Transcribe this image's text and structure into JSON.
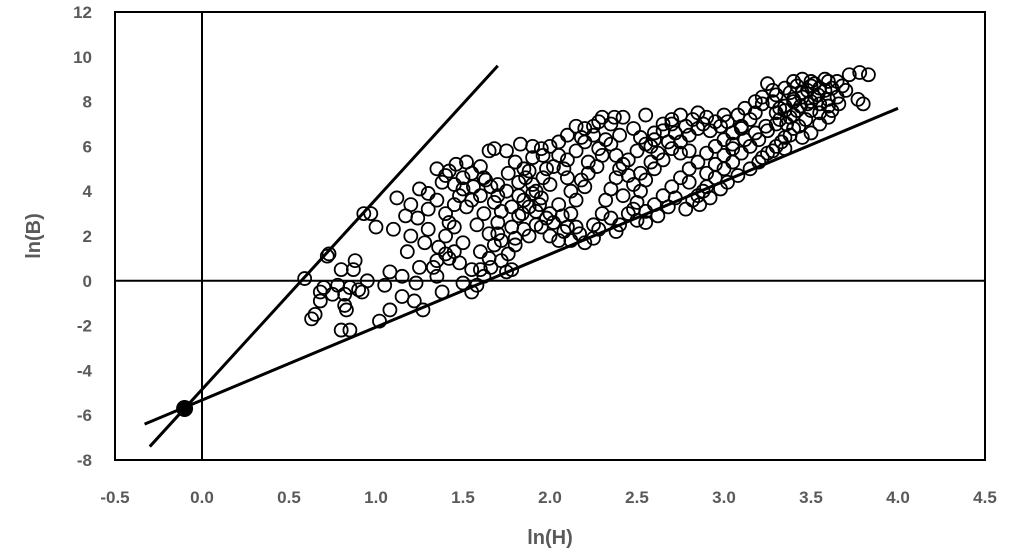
{
  "chart_data": {
    "type": "scatter",
    "title": "",
    "xlabel": "ln(H)",
    "ylabel": "ln(B)",
    "xlim": [
      -0.5,
      4.5
    ],
    "ylim": [
      -8,
      12
    ],
    "x_ticks": [
      "-0.5",
      "0.0",
      "0.5",
      "1.0",
      "1.5",
      "2.0",
      "2.5",
      "3.0",
      "3.5",
      "4.0",
      "4.5"
    ],
    "y_ticks": [
      "-8",
      "-6",
      "-4",
      "-2",
      "0",
      "2",
      "4",
      "6",
      "8",
      "10",
      "12"
    ],
    "grid": false,
    "legend": "none",
    "marker": "open-circle",
    "reference_lines": [
      {
        "x1": -0.3,
        "y1": -7.4,
        "x2": 1.7,
        "y2": 9.6
      },
      {
        "x1": -0.33,
        "y1": -6.4,
        "x2": 4.0,
        "y2": 7.7
      }
    ],
    "highlight_point": {
      "x": -0.1,
      "y": -5.7
    },
    "points": [
      [
        0.59,
        0.1
      ],
      [
        0.72,
        1.1
      ],
      [
        0.73,
        1.2
      ],
      [
        0.63,
        -1.7
      ],
      [
        0.65,
        -1.5
      ],
      [
        0.68,
        -0.9
      ],
      [
        0.68,
        -0.5
      ],
      [
        0.7,
        -0.3
      ],
      [
        0.75,
        -0.6
      ],
      [
        0.78,
        -0.2
      ],
      [
        0.8,
        0.5
      ],
      [
        0.82,
        -0.6
      ],
      [
        0.82,
        -1.1
      ],
      [
        0.8,
        -2.2
      ],
      [
        0.85,
        -2.2
      ],
      [
        0.83,
        -1.3
      ],
      [
        0.85,
        -0.3
      ],
      [
        0.87,
        0.5
      ],
      [
        0.88,
        0.9
      ],
      [
        0.9,
        -0.4
      ],
      [
        0.93,
        3.0
      ],
      [
        0.97,
        3.0
      ],
      [
        1.0,
        2.4
      ],
      [
        1.1,
        2.3
      ],
      [
        1.12,
        3.7
      ],
      [
        1.17,
        2.9
      ],
      [
        1.2,
        3.4
      ],
      [
        1.25,
        4.1
      ],
      [
        1.3,
        3.9
      ],
      [
        1.3,
        2.3
      ],
      [
        1.25,
        0.6
      ],
      [
        1.23,
        -0.1
      ],
      [
        1.15,
        -0.7
      ],
      [
        1.08,
        -1.3
      ],
      [
        1.02,
        -1.8
      ],
      [
        1.22,
        -0.9
      ],
      [
        1.27,
        -1.3
      ],
      [
        1.35,
        0.2
      ],
      [
        1.4,
        1.2
      ],
      [
        1.42,
        2.6
      ],
      [
        1.45,
        3.4
      ],
      [
        1.5,
        4.1
      ],
      [
        1.38,
        4.4
      ],
      [
        1.42,
        4.9
      ],
      [
        1.46,
        5.2
      ],
      [
        1.52,
        5.3
      ],
      [
        1.6,
        5.1
      ],
      [
        1.65,
        5.8
      ],
      [
        1.68,
        5.9
      ],
      [
        1.75,
        5.8
      ],
      [
        1.83,
        6.1
      ],
      [
        1.9,
        6.0
      ],
      [
        1.96,
        5.6
      ],
      [
        1.88,
        4.9
      ],
      [
        1.82,
        4.4
      ],
      [
        1.75,
        4.0
      ],
      [
        1.7,
        4.3
      ],
      [
        1.63,
        4.5
      ],
      [
        1.55,
        4.8
      ],
      [
        1.52,
        3.3
      ],
      [
        1.58,
        2.5
      ],
      [
        1.55,
        0.5
      ],
      [
        1.5,
        -0.1
      ],
      [
        1.48,
        0.8
      ],
      [
        1.45,
        1.3
      ],
      [
        1.38,
        -0.5
      ],
      [
        1.33,
        0.6
      ],
      [
        1.36,
        1.5
      ],
      [
        1.4,
        2.0
      ],
      [
        1.55,
        -0.5
      ],
      [
        1.6,
        0.5
      ],
      [
        1.65,
        1.0
      ],
      [
        1.68,
        1.6
      ],
      [
        1.65,
        2.1
      ],
      [
        1.7,
        2.6
      ],
      [
        1.72,
        0.9
      ],
      [
        1.75,
        0.4
      ],
      [
        1.78,
        2.4
      ],
      [
        1.82,
        2.9
      ],
      [
        1.85,
        2.3
      ],
      [
        1.85,
        3.6
      ],
      [
        1.9,
        4.3
      ],
      [
        1.92,
        3.1
      ],
      [
        1.95,
        3.7
      ],
      [
        1.95,
        2.4
      ],
      [
        2.0,
        2.0
      ],
      [
        2.0,
        3.0
      ],
      [
        2.0,
        4.3
      ],
      [
        2.02,
        5.1
      ],
      [
        2.05,
        5.6
      ],
      [
        2.1,
        5.4
      ],
      [
        2.15,
        5.8
      ],
      [
        2.18,
        6.4
      ],
      [
        2.2,
        6.8
      ],
      [
        2.25,
        6.9
      ],
      [
        2.3,
        7.3
      ],
      [
        2.35,
        7.0
      ],
      [
        2.37,
        7.3
      ],
      [
        2.4,
        6.5
      ],
      [
        2.35,
        6.1
      ],
      [
        2.3,
        5.6
      ],
      [
        2.27,
        5.1
      ],
      [
        2.22,
        4.8
      ],
      [
        2.2,
        4.2
      ],
      [
        2.15,
        3.6
      ],
      [
        2.12,
        3.0
      ],
      [
        2.1,
        2.4
      ],
      [
        2.07,
        2.9
      ],
      [
        2.05,
        3.4
      ],
      [
        2.17,
        2.1
      ],
      [
        2.25,
        2.5
      ],
      [
        2.3,
        3.0
      ],
      [
        2.32,
        3.6
      ],
      [
        2.35,
        4.1
      ],
      [
        2.38,
        4.6
      ],
      [
        2.4,
        5.0
      ],
      [
        2.45,
        5.4
      ],
      [
        2.5,
        5.8
      ],
      [
        2.55,
        6.1
      ],
      [
        2.6,
        6.6
      ],
      [
        2.65,
        7.0
      ],
      [
        2.7,
        7.2
      ],
      [
        2.75,
        7.4
      ],
      [
        2.85,
        7.5
      ],
      [
        2.9,
        7.3
      ],
      [
        2.95,
        7.1
      ],
      [
        3.0,
        7.4
      ],
      [
        2.55,
        7.4
      ],
      [
        2.4,
        2.5
      ],
      [
        2.45,
        3.0
      ],
      [
        2.5,
        3.5
      ],
      [
        2.52,
        4.0
      ],
      [
        2.55,
        4.5
      ],
      [
        2.6,
        5.0
      ],
      [
        2.65,
        5.4
      ],
      [
        2.7,
        5.9
      ],
      [
        2.75,
        6.2
      ],
      [
        2.8,
        6.5
      ],
      [
        2.85,
        6.8
      ],
      [
        2.5,
        2.7
      ],
      [
        2.55,
        3.1
      ],
      [
        2.6,
        3.4
      ],
      [
        2.65,
        3.8
      ],
      [
        2.7,
        4.2
      ],
      [
        2.75,
        4.6
      ],
      [
        2.8,
        5.0
      ],
      [
        2.85,
        5.3
      ],
      [
        2.9,
        5.7
      ],
      [
        2.95,
        6.0
      ],
      [
        3.0,
        6.3
      ],
      [
        3.05,
        6.6
      ],
      [
        3.1,
        6.9
      ],
      [
        2.78,
        3.2
      ],
      [
        2.85,
        3.8
      ],
      [
        2.9,
        4.2
      ],
      [
        2.95,
        4.6
      ],
      [
        3.0,
        5.0
      ],
      [
        3.05,
        5.3
      ],
      [
        3.1,
        5.7
      ],
      [
        3.15,
        6.0
      ],
      [
        3.2,
        6.3
      ],
      [
        3.25,
        6.7
      ],
      [
        3.3,
        7.0
      ],
      [
        3.2,
        5.3
      ],
      [
        3.25,
        5.7
      ],
      [
        3.3,
        6.0
      ],
      [
        3.35,
        6.4
      ],
      [
        3.4,
        6.8
      ],
      [
        3.3,
        7.5
      ],
      [
        3.35,
        7.8
      ],
      [
        3.4,
        8.1
      ],
      [
        3.45,
        8.4
      ],
      [
        3.5,
        8.7
      ],
      [
        3.3,
        8.3
      ],
      [
        3.35,
        8.6
      ],
      [
        3.4,
        8.9
      ],
      [
        3.45,
        9.0
      ],
      [
        3.5,
        8.9
      ],
      [
        3.55,
        8.6
      ],
      [
        3.6,
        8.9
      ],
      [
        3.38,
        7.3
      ],
      [
        3.42,
        7.6
      ],
      [
        3.48,
        7.9
      ],
      [
        3.52,
        8.2
      ],
      [
        3.58,
        8.5
      ],
      [
        3.55,
        7.5
      ],
      [
        3.6,
        7.8
      ],
      [
        3.65,
        8.2
      ],
      [
        3.7,
        8.5
      ],
      [
        3.5,
        6.6
      ],
      [
        3.55,
        7.0
      ],
      [
        3.6,
        7.3
      ],
      [
        3.45,
        6.4
      ],
      [
        3.35,
        5.9
      ],
      [
        3.72,
        9.2
      ],
      [
        3.78,
        9.3
      ],
      [
        3.83,
        9.2
      ],
      [
        3.8,
        7.9
      ],
      [
        3.77,
        8.1
      ],
      [
        3.65,
        8.9
      ],
      [
        3.68,
        8.7
      ],
      [
        3.25,
        8.8
      ],
      [
        3.28,
        8.5
      ],
      [
        3.22,
        7.9
      ],
      [
        3.18,
        7.5
      ],
      [
        3.15,
        7.2
      ],
      [
        3.1,
        6.8
      ],
      [
        3.05,
        6.1
      ],
      [
        3.0,
        5.6
      ],
      [
        2.95,
        5.2
      ],
      [
        2.9,
        4.8
      ],
      [
        2.88,
        4.0
      ],
      [
        2.82,
        3.6
      ],
      [
        2.8,
        4.4
      ],
      [
        2.72,
        3.7
      ],
      [
        2.68,
        3.3
      ],
      [
        2.62,
        2.9
      ],
      [
        2.55,
        2.6
      ],
      [
        2.48,
        3.2
      ],
      [
        2.42,
        3.8
      ],
      [
        2.38,
        2.2
      ],
      [
        2.35,
        2.8
      ],
      [
        2.28,
        2.3
      ],
      [
        2.25,
        1.9
      ],
      [
        2.2,
        1.7
      ],
      [
        2.15,
        2.4
      ],
      [
        2.12,
        1.8
      ],
      [
        2.08,
        2.2
      ],
      [
        2.05,
        1.8
      ],
      [
        2.02,
        2.6
      ],
      [
        1.98,
        2.8
      ],
      [
        1.92,
        2.5
      ],
      [
        1.88,
        2.0
      ],
      [
        1.8,
        1.6
      ],
      [
        1.76,
        1.2
      ],
      [
        1.72,
        1.8
      ],
      [
        1.7,
        2.1
      ],
      [
        1.66,
        0.6
      ],
      [
        1.62,
        0.2
      ],
      [
        1.58,
        -0.2
      ],
      [
        1.6,
        1.3
      ],
      [
        1.78,
        0.5
      ],
      [
        1.8,
        1.9
      ],
      [
        1.84,
        3.0
      ],
      [
        1.88,
        3.3
      ],
      [
        1.9,
        3.9
      ],
      [
        1.96,
        4.6
      ],
      [
        1.98,
        5.0
      ],
      [
        2.08,
        5.0
      ],
      [
        2.1,
        4.6
      ],
      [
        2.12,
        4.0
      ],
      [
        2.18,
        4.5
      ],
      [
        2.22,
        5.3
      ],
      [
        2.28,
        5.9
      ],
      [
        2.32,
        6.3
      ],
      [
        2.38,
        5.6
      ],
      [
        2.42,
        5.2
      ],
      [
        2.45,
        4.7
      ],
      [
        2.48,
        4.3
      ],
      [
        2.52,
        4.8
      ],
      [
        2.58,
        5.3
      ],
      [
        2.62,
        5.7
      ],
      [
        2.68,
        6.2
      ],
      [
        2.72,
        6.6
      ],
      [
        2.78,
        6.9
      ],
      [
        2.82,
        7.2
      ],
      [
        2.88,
        7.0
      ],
      [
        2.92,
        6.7
      ],
      [
        2.98,
        6.9
      ],
      [
        3.02,
        7.1
      ],
      [
        3.08,
        7.4
      ],
      [
        3.12,
        7.7
      ],
      [
        3.18,
        8.0
      ],
      [
        3.22,
        8.2
      ],
      [
        3.28,
        8.0
      ],
      [
        3.32,
        7.7
      ],
      [
        3.38,
        8.4
      ],
      [
        3.42,
        8.7
      ],
      [
        3.48,
        8.5
      ],
      [
        3.52,
        8.8
      ],
      [
        3.58,
        9.0
      ],
      [
        3.62,
        8.6
      ],
      [
        3.47,
        7.2
      ],
      [
        3.43,
        6.9
      ],
      [
        3.38,
        6.5
      ],
      [
        3.33,
        6.2
      ],
      [
        3.28,
        5.8
      ],
      [
        3.22,
        5.5
      ],
      [
        3.15,
        5.0
      ],
      [
        3.08,
        4.7
      ],
      [
        3.02,
        4.4
      ],
      [
        2.98,
        4.1
      ],
      [
        2.92,
        3.7
      ],
      [
        2.86,
        3.4
      ],
      [
        3.05,
        5.9
      ],
      [
        3.12,
        6.3
      ],
      [
        3.18,
        6.6
      ],
      [
        3.24,
        6.9
      ],
      [
        3.32,
        7.2
      ],
      [
        3.36,
        7.0
      ],
      [
        3.4,
        7.4
      ],
      [
        3.44,
        7.8
      ],
      [
        3.5,
        8.0
      ],
      [
        3.54,
        8.3
      ],
      [
        1.3,
        3.2
      ],
      [
        1.35,
        3.6
      ],
      [
        1.4,
        3.0
      ],
      [
        1.45,
        2.4
      ],
      [
        1.5,
        1.7
      ],
      [
        1.42,
        1.0
      ],
      [
        1.35,
        0.9
      ],
      [
        1.28,
        1.7
      ],
      [
        1.24,
        2.8
      ],
      [
        1.2,
        2.0
      ],
      [
        1.18,
        1.3
      ],
      [
        1.15,
        0.2
      ],
      [
        1.08,
        0.4
      ],
      [
        1.05,
        -0.2
      ],
      [
        0.95,
        0.0
      ],
      [
        0.92,
        -0.5
      ],
      [
        1.62,
        3.0
      ],
      [
        1.68,
        3.5
      ],
      [
        1.72,
        3.1
      ],
      [
        1.76,
        4.8
      ],
      [
        1.8,
        5.3
      ],
      [
        1.85,
        5.0
      ],
      [
        1.9,
        5.5
      ],
      [
        1.95,
        5.9
      ],
      [
        2.0,
        6.0
      ],
      [
        2.05,
        6.2
      ],
      [
        2.1,
        6.5
      ],
      [
        2.15,
        6.9
      ],
      [
        2.2,
        6.2
      ],
      [
        2.25,
        6.5
      ],
      [
        2.28,
        7.1
      ],
      [
        2.42,
        7.3
      ],
      [
        2.48,
        6.8
      ],
      [
        2.52,
        6.4
      ],
      [
        2.58,
        6.0
      ],
      [
        2.6,
        6.3
      ],
      [
        2.65,
        6.7
      ],
      [
        2.7,
        7.0
      ],
      [
        2.75,
        5.7
      ],
      [
        2.8,
        5.8
      ],
      [
        1.5,
        4.6
      ],
      [
        1.56,
        4.2
      ],
      [
        1.6,
        3.8
      ],
      [
        1.55,
        3.6
      ],
      [
        1.48,
        3.8
      ],
      [
        1.45,
        4.3
      ],
      [
        1.4,
        4.7
      ],
      [
        1.35,
        5.0
      ],
      [
        1.62,
        4.6
      ],
      [
        1.66,
        4.2
      ],
      [
        1.7,
        3.8
      ],
      [
        1.78,
        3.3
      ],
      [
        1.82,
        3.8
      ],
      [
        1.86,
        4.6
      ],
      [
        1.92,
        4.0
      ],
      [
        1.94,
        3.4
      ],
      [
        3.35,
        7.6
      ],
      [
        3.4,
        8.0
      ],
      [
        3.45,
        8.2
      ],
      [
        3.5,
        7.6
      ],
      [
        3.55,
        7.9
      ],
      [
        3.6,
        8.1
      ],
      [
        3.62,
        7.6
      ],
      [
        3.66,
        7.9
      ]
    ]
  }
}
